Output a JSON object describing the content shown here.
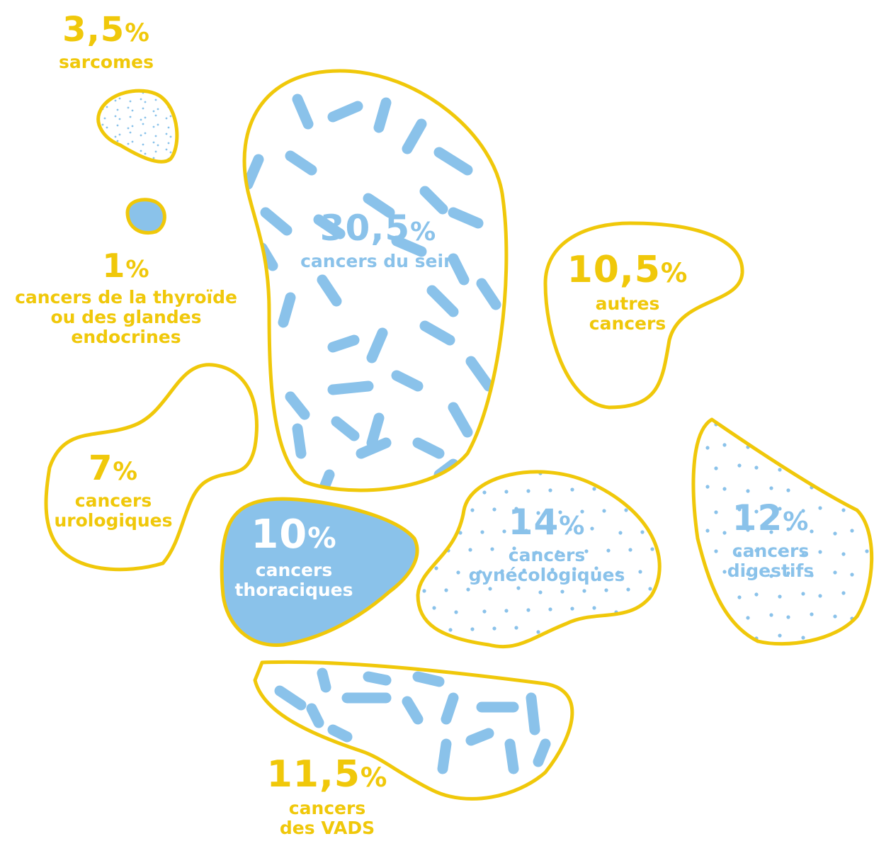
{
  "chart_data": {
    "type": "bubble",
    "title": "",
    "unit": "%",
    "colors": {
      "outline": "#f0c80a",
      "fill": "#8ac2ea",
      "text_yellow": "#f0c80a",
      "text_blue": "#8ac2ea",
      "background": "#ffffff"
    },
    "items": [
      {
        "id": "sarcomes",
        "value_label": "3,5",
        "value": 3.5,
        "label_lines": [
          "sarcomes"
        ],
        "pattern": "dots",
        "text_color": "yellow"
      },
      {
        "id": "thyroide",
        "value_label": "1",
        "value": 1,
        "label_lines": [
          "cancers de la thyroïde",
          "ou des glandes",
          "endocrines"
        ],
        "pattern": "solid",
        "text_color": "yellow"
      },
      {
        "id": "sein",
        "value_label": "30,5",
        "value": 30.5,
        "label_lines": [
          "cancers du sein"
        ],
        "pattern": "dashes",
        "text_color": "blue"
      },
      {
        "id": "autres",
        "value_label": "10,5",
        "value": 10.5,
        "label_lines": [
          "autres",
          "cancers"
        ],
        "pattern": "none",
        "text_color": "yellow"
      },
      {
        "id": "urologiques",
        "value_label": "7",
        "value": 7,
        "label_lines": [
          "cancers",
          "urologiques"
        ],
        "pattern": "none",
        "text_color": "yellow"
      },
      {
        "id": "thoraciques",
        "value_label": "10",
        "value": 10,
        "label_lines": [
          "cancers",
          "thoraciques"
        ],
        "pattern": "solid",
        "text_color": "white"
      },
      {
        "id": "gynecologiques",
        "value_label": "14",
        "value": 14,
        "label_lines": [
          "cancers",
          "gynécologiques"
        ],
        "pattern": "dots",
        "text_color": "blue"
      },
      {
        "id": "digestifs",
        "value_label": "12",
        "value": 12,
        "label_lines": [
          "cancers",
          "digestifs"
        ],
        "pattern": "dots",
        "text_color": "blue"
      },
      {
        "id": "vads",
        "value_label": "11,5",
        "value": 11.5,
        "label_lines": [
          "cancers",
          "des VADS"
        ],
        "pattern": "dashes",
        "text_color": "yellow"
      }
    ]
  }
}
